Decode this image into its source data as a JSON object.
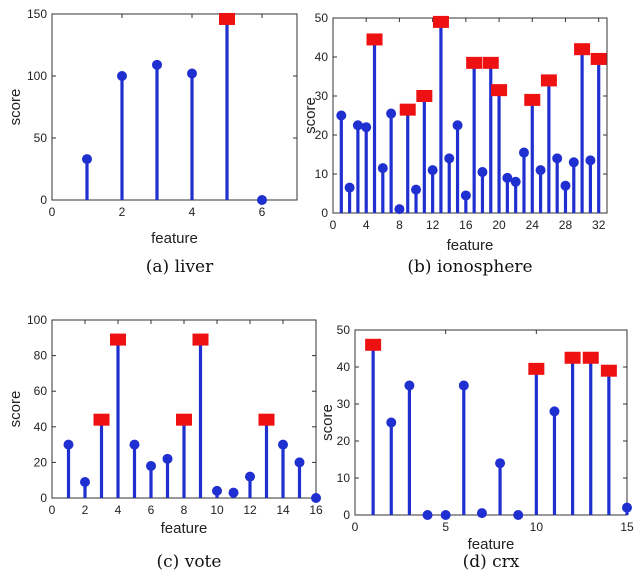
{
  "chart_data": [
    {
      "type": "stem",
      "caption": "(a) liver",
      "xlabel": "feature",
      "ylabel": "score",
      "xlim": [
        0,
        7
      ],
      "ylim": [
        0,
        150
      ],
      "xticks": [
        "0",
        "2",
        "4",
        "6"
      ],
      "yticks": [
        "0",
        "50",
        "100",
        "150"
      ],
      "points": [
        {
          "x": 1,
          "y": 33,
          "selected": false
        },
        {
          "x": 2,
          "y": 100,
          "selected": false
        },
        {
          "x": 3,
          "y": 109,
          "selected": false
        },
        {
          "x": 4,
          "y": 102,
          "selected": false
        },
        {
          "x": 5,
          "y": 146,
          "selected": true
        },
        {
          "x": 6,
          "y": 0,
          "selected": false
        }
      ]
    },
    {
      "type": "stem",
      "caption": "(b) ionosphere",
      "xlabel": "feature",
      "ylabel": "score",
      "xlim": [
        0,
        33
      ],
      "ylim": [
        0,
        50
      ],
      "xticks": [
        "0",
        "4",
        "8",
        "12",
        "16",
        "20",
        "24",
        "28",
        "32"
      ],
      "yticks": [
        "0",
        "10",
        "20",
        "30",
        "40",
        "50"
      ],
      "points": [
        {
          "x": 1,
          "y": 25,
          "selected": false
        },
        {
          "x": 2,
          "y": 6.5,
          "selected": false
        },
        {
          "x": 3,
          "y": 22.5,
          "selected": false
        },
        {
          "x": 4,
          "y": 22,
          "selected": false
        },
        {
          "x": 5,
          "y": 44.5,
          "selected": true
        },
        {
          "x": 6,
          "y": 11.5,
          "selected": false
        },
        {
          "x": 7,
          "y": 25.5,
          "selected": false
        },
        {
          "x": 8,
          "y": 1,
          "selected": false
        },
        {
          "x": 9,
          "y": 26.5,
          "selected": true
        },
        {
          "x": 10,
          "y": 6,
          "selected": false
        },
        {
          "x": 11,
          "y": 30,
          "selected": true
        },
        {
          "x": 12,
          "y": 11,
          "selected": false
        },
        {
          "x": 13,
          "y": 49,
          "selected": true
        },
        {
          "x": 14,
          "y": 14,
          "selected": false
        },
        {
          "x": 15,
          "y": 22.5,
          "selected": false
        },
        {
          "x": 16,
          "y": 4.5,
          "selected": false
        },
        {
          "x": 17,
          "y": 38.5,
          "selected": true
        },
        {
          "x": 18,
          "y": 10.5,
          "selected": false
        },
        {
          "x": 19,
          "y": 38.5,
          "selected": true
        },
        {
          "x": 20,
          "y": 31.5,
          "selected": true
        },
        {
          "x": 21,
          "y": 9,
          "selected": false
        },
        {
          "x": 22,
          "y": 8,
          "selected": false
        },
        {
          "x": 23,
          "y": 15.5,
          "selected": false
        },
        {
          "x": 24,
          "y": 29,
          "selected": true
        },
        {
          "x": 25,
          "y": 11,
          "selected": false
        },
        {
          "x": 26,
          "y": 34,
          "selected": true
        },
        {
          "x": 27,
          "y": 14,
          "selected": false
        },
        {
          "x": 28,
          "y": 7,
          "selected": false
        },
        {
          "x": 29,
          "y": 13,
          "selected": false
        },
        {
          "x": 30,
          "y": 42,
          "selected": true
        },
        {
          "x": 31,
          "y": 13.5,
          "selected": false
        },
        {
          "x": 32,
          "y": 39.5,
          "selected": true
        }
      ]
    },
    {
      "type": "stem",
      "caption": "(c) vote",
      "xlabel": "feature",
      "ylabel": "score",
      "xlim": [
        0,
        16
      ],
      "ylim": [
        0,
        100
      ],
      "xticks": [
        "0",
        "2",
        "4",
        "6",
        "8",
        "10",
        "12",
        "14",
        "16"
      ],
      "yticks": [
        "0",
        "20",
        "40",
        "60",
        "80",
        "100"
      ],
      "points": [
        {
          "x": 1,
          "y": 30,
          "selected": false
        },
        {
          "x": 2,
          "y": 9,
          "selected": false
        },
        {
          "x": 3,
          "y": 44,
          "selected": true
        },
        {
          "x": 4,
          "y": 89,
          "selected": true
        },
        {
          "x": 5,
          "y": 30,
          "selected": false
        },
        {
          "x": 6,
          "y": 18,
          "selected": false
        },
        {
          "x": 7,
          "y": 22,
          "selected": false
        },
        {
          "x": 8,
          "y": 44,
          "selected": true
        },
        {
          "x": 9,
          "y": 89,
          "selected": true
        },
        {
          "x": 10,
          "y": 4,
          "selected": false
        },
        {
          "x": 11,
          "y": 3,
          "selected": false
        },
        {
          "x": 12,
          "y": 12,
          "selected": false
        },
        {
          "x": 13,
          "y": 44,
          "selected": true
        },
        {
          "x": 14,
          "y": 30,
          "selected": false
        },
        {
          "x": 15,
          "y": 20,
          "selected": false
        },
        {
          "x": 16,
          "y": 0,
          "selected": false
        }
      ]
    },
    {
      "type": "stem",
      "caption": "(d) crx",
      "xlabel": "feature",
      "ylabel": "score",
      "xlim": [
        0,
        15
      ],
      "ylim": [
        0,
        50
      ],
      "xticks": [
        "0",
        "5",
        "10",
        "15"
      ],
      "xtick_values": [
        0,
        5,
        10,
        15
      ],
      "yticks": [
        "0",
        "10",
        "20",
        "30",
        "40",
        "50"
      ],
      "points": [
        {
          "x": 1,
          "y": 46,
          "selected": true
        },
        {
          "x": 2,
          "y": 25,
          "selected": false
        },
        {
          "x": 3,
          "y": 35,
          "selected": false
        },
        {
          "x": 4,
          "y": 0,
          "selected": false
        },
        {
          "x": 5,
          "y": 0,
          "selected": false
        },
        {
          "x": 6,
          "y": 35,
          "selected": false
        },
        {
          "x": 7,
          "y": 0.5,
          "selected": false
        },
        {
          "x": 8,
          "y": 14,
          "selected": false
        },
        {
          "x": 9,
          "y": 0,
          "selected": false
        },
        {
          "x": 10,
          "y": 39.5,
          "selected": true
        },
        {
          "x": 11,
          "y": 28,
          "selected": false
        },
        {
          "x": 12,
          "y": 42.5,
          "selected": true
        },
        {
          "x": 13,
          "y": 42.5,
          "selected": true
        },
        {
          "x": 14,
          "y": 39,
          "selected": true
        },
        {
          "x": 15,
          "y": 2,
          "selected": false
        }
      ]
    }
  ],
  "colors": {
    "stem": "#1f2fd0",
    "selected_marker": "#ee1111",
    "axis": "#333333"
  }
}
